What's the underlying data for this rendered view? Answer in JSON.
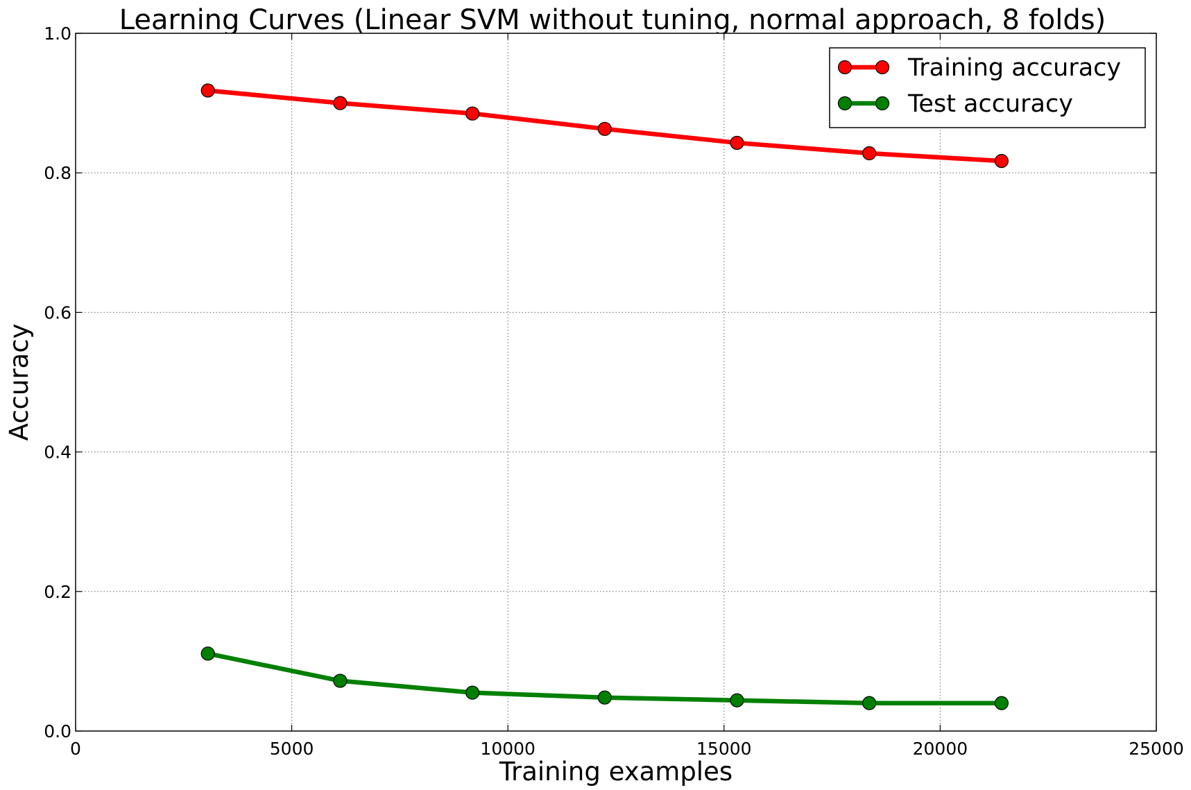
{
  "chart_data": {
    "type": "line",
    "title": "Learning Curves (Linear SVM without tuning, normal approach, 8 folds)",
    "xlabel": "Training examples",
    "ylabel": "Accuracy",
    "xlim": [
      0,
      25000
    ],
    "ylim": [
      0.0,
      1.0
    ],
    "xticks": [
      0,
      5000,
      10000,
      15000,
      20000,
      25000
    ],
    "xtick_labels": [
      "0",
      "5000",
      "10000",
      "15000",
      "20000",
      "25000"
    ],
    "yticks": [
      0.0,
      0.2,
      0.4,
      0.6,
      0.8,
      1.0
    ],
    "ytick_labels": [
      "0.0",
      "0.2",
      "0.4",
      "0.6",
      "0.8",
      "1.0"
    ],
    "grid": true,
    "legend_position": "top-right",
    "x": [
      3060,
      6120,
      9180,
      12240,
      15300,
      18360,
      21420
    ],
    "series": [
      {
        "name": "Training accuracy",
        "color": "#ff0000",
        "values": [
          0.918,
          0.9,
          0.885,
          0.863,
          0.843,
          0.828,
          0.817
        ]
      },
      {
        "name": "Test accuracy",
        "color": "#008000",
        "values": [
          0.111,
          0.072,
          0.055,
          0.048,
          0.044,
          0.04,
          0.04
        ]
      }
    ]
  }
}
